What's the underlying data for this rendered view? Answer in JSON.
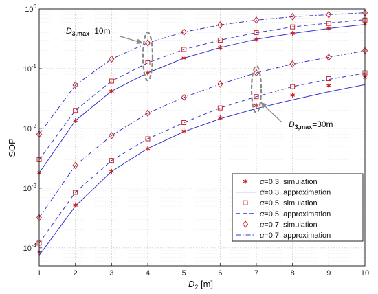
{
  "chart_data": {
    "type": "line",
    "xlabel": "D",
    "xlabel_sub": "2",
    "xlabel_unit": " [m]",
    "ylabel": "SOP",
    "x": [
      1,
      2,
      3,
      4,
      5,
      6,
      7,
      8,
      9,
      10
    ],
    "xlim": [
      1,
      10
    ],
    "ylim": [
      5e-05,
      1
    ],
    "yscale": "log",
    "x_ticks": [
      "1",
      "2",
      "3",
      "4",
      "5",
      "6",
      "7",
      "8",
      "9",
      "10"
    ],
    "y_ticks": [
      {
        "base": "10",
        "exp": "0",
        "value": 1
      },
      {
        "base": "10",
        "exp": "-1",
        "value": 0.1
      },
      {
        "base": "10",
        "exp": "-2",
        "value": 0.01
      },
      {
        "base": "10",
        "exp": "-3",
        "value": 0.001
      },
      {
        "base": "10",
        "exp": "-4",
        "value": 0.0001
      }
    ],
    "grid": true,
    "legend_position": "bottom-right",
    "legend": [
      {
        "alpha": "α",
        "text": "=0.3, simulation"
      },
      {
        "alpha": "α",
        "text": "=0.3, approximation"
      },
      {
        "alpha": "α",
        "text": "=0.5, simulation"
      },
      {
        "alpha": "α",
        "text": "=0.5, approximation"
      },
      {
        "alpha": "α",
        "text": "=0.7, simulation"
      },
      {
        "alpha": "α",
        "text": "=0.7, approximation"
      }
    ],
    "annotations": [
      {
        "prefix": "D",
        "sub": "3,max",
        "suffix": "=10m"
      },
      {
        "prefix": "D",
        "sub": "3,max",
        "suffix": "=30m"
      }
    ],
    "groups": [
      {
        "d3max": "10m",
        "series": [
          {
            "alpha": 0.3,
            "simulation": [
              0.0018,
              0.0135,
              0.042,
              0.085,
              0.15,
              0.225,
              0.31,
              0.39,
              0.47,
              0.56
            ],
            "approximation": [
              0.0018,
              0.0135,
              0.042,
              0.085,
              0.15,
              0.225,
              0.31,
              0.39,
              0.47,
              0.55
            ]
          },
          {
            "alpha": 0.5,
            "simulation": [
              0.003,
              0.02,
              0.062,
              0.125,
              0.21,
              0.3,
              0.4,
              0.5,
              0.57,
              0.65
            ],
            "approximation": [
              0.003,
              0.02,
              0.062,
              0.125,
              0.21,
              0.3,
              0.4,
              0.5,
              0.58,
              0.66
            ]
          },
          {
            "alpha": 0.7,
            "simulation": [
              0.008,
              0.053,
              0.145,
              0.27,
              0.41,
              0.54,
              0.65,
              0.74,
              0.8,
              0.86
            ],
            "approximation": [
              0.008,
              0.053,
              0.145,
              0.27,
              0.41,
              0.54,
              0.65,
              0.74,
              0.8,
              0.86
            ]
          }
        ]
      },
      {
        "d3max": "30m",
        "series": [
          {
            "alpha": 0.3,
            "simulation": [
              8.5e-05,
              0.00052,
              0.0019,
              0.0046,
              0.009,
              0.015,
              0.024,
              0.036,
              0.052,
              0.072
            ],
            "approximation": [
              7.5e-05,
              0.0005,
              0.0019,
              0.0046,
              0.0088,
              0.0145,
              0.0215,
              0.03,
              0.041,
              0.054
            ]
          },
          {
            "alpha": 0.5,
            "simulation": [
              0.00012,
              0.00085,
              0.0029,
              0.0067,
              0.0125,
              0.022,
              0.034,
              0.05,
              0.068,
              0.085
            ],
            "approximation": [
              0.00012,
              0.00085,
              0.0029,
              0.0067,
              0.0125,
              0.022,
              0.034,
              0.05,
              0.066,
              0.084
            ]
          },
          {
            "alpha": 0.7,
            "simulation": [
              0.00032,
              0.0024,
              0.0076,
              0.018,
              0.033,
              0.055,
              0.085,
              0.12,
              0.155,
              0.2
            ],
            "approximation": [
              0.00032,
              0.0024,
              0.0076,
              0.018,
              0.033,
              0.055,
              0.085,
              0.12,
              0.155,
              0.2
            ]
          }
        ]
      }
    ],
    "colors": {
      "line": "#3333cc",
      "marker": "#cc2222",
      "star_fill": "#cc2222",
      "ellipse": "#888888",
      "grid_major": "#d0d0d0",
      "grid_minor": "#e6e6e6"
    }
  }
}
